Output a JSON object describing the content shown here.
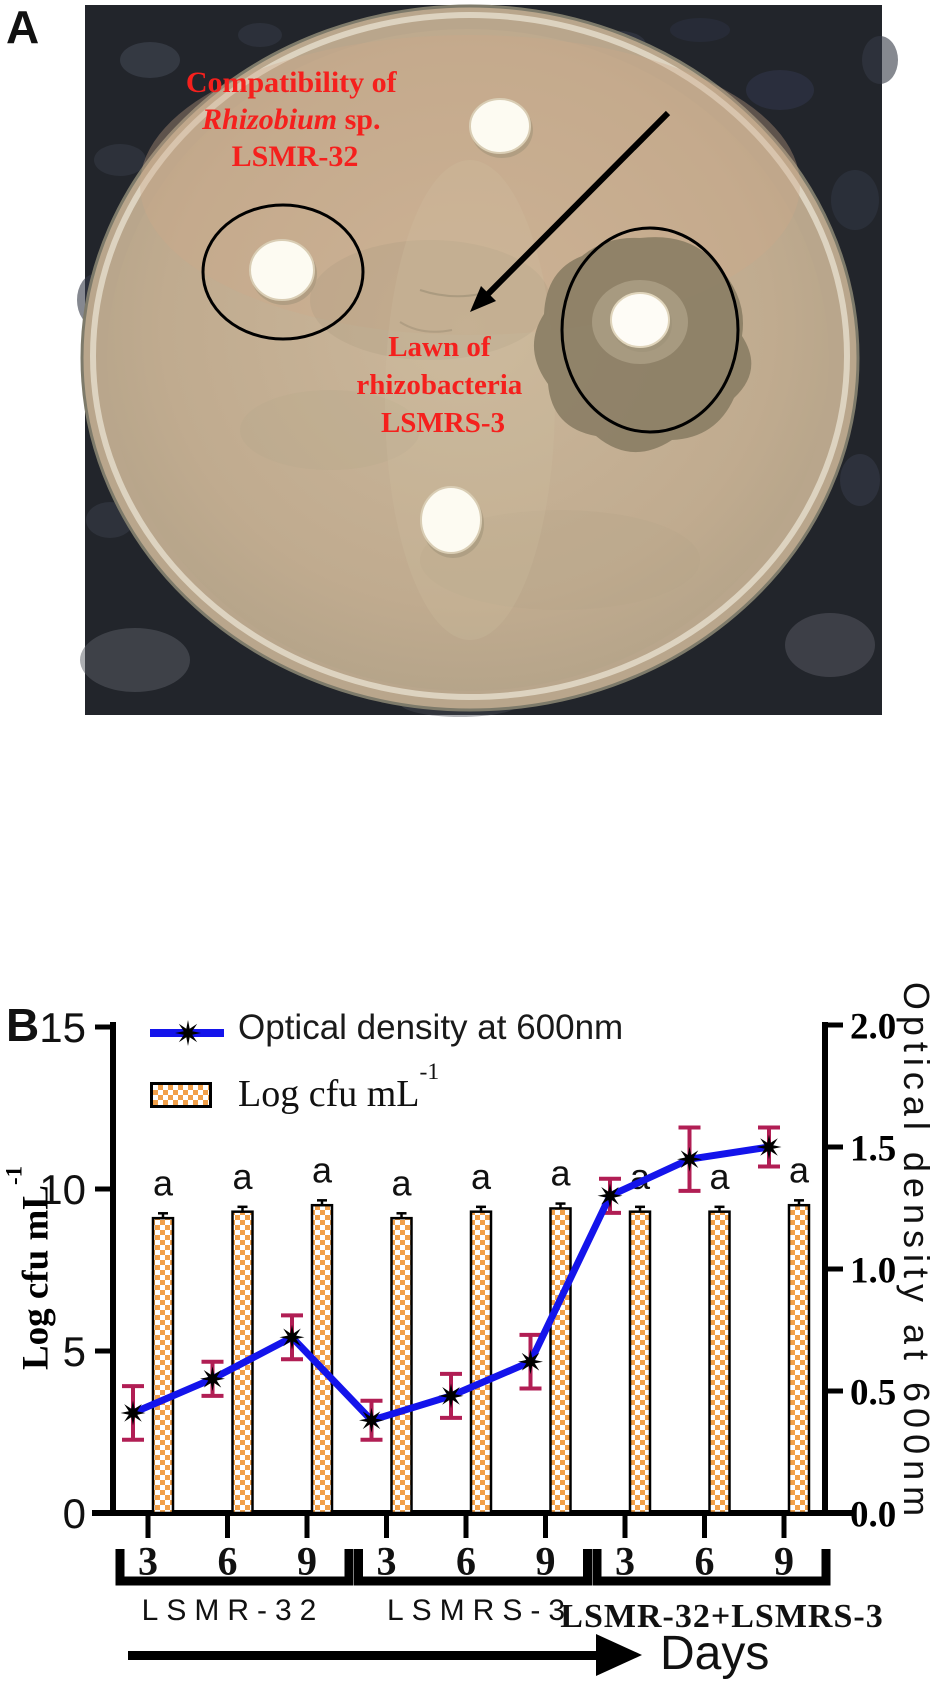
{
  "panel_a": {
    "label": "A",
    "annotation_compatibility": {
      "line1": "Compatibility of",
      "line2_italic": "Rhizobium",
      "line2_rest": " sp.",
      "line3": "LSMR-32",
      "color": "#F5201D"
    },
    "annotation_lawn": {
      "line1": "Lawn of",
      "line2": "rhizobacteria",
      "line3": "LSMRS-3",
      "color": "#F5201D"
    }
  },
  "panel_b": {
    "label": "B"
  },
  "chart_data": {
    "type": "combo",
    "x": {
      "slot_labels": [
        "3",
        "6",
        "9",
        "3",
        "6",
        "9",
        "3",
        "6",
        "9"
      ],
      "group_labels": [
        "LSMR-32",
        "LSMRS-3",
        "LSMR-32+LSMRS-3"
      ],
      "arrow_label": "Days"
    },
    "left_axis": {
      "title_main": "Log cfu mL",
      "title_sup": "-1",
      "range": [
        0,
        15
      ],
      "ticks": [
        {
          "label": "15",
          "value": 15
        },
        {
          "label": "10",
          "value": 10
        },
        {
          "label": "5",
          "value": 5
        },
        {
          "label": "0",
          "value": 0
        }
      ]
    },
    "right_axis": {
      "title": "Optical density at 600nm",
      "range": [
        0,
        2
      ],
      "ticks": [
        {
          "label": "2.0",
          "value": 2.0
        },
        {
          "label": "1.5",
          "value": 1.5
        },
        {
          "label": "1.0",
          "value": 1.0
        },
        {
          "label": "0.5",
          "value": 0.5
        },
        {
          "label": "0.0",
          "value": 0.0
        }
      ]
    },
    "series": [
      {
        "name": "Optical density at 600nm",
        "type": "line",
        "axis": "right",
        "line_color": "#1414EB",
        "marker": "black-8-point-star",
        "marker_color": "#000000",
        "error_color": "#B11E54",
        "values": [
          0.41,
          0.55,
          0.72,
          0.38,
          0.48,
          0.62,
          1.3,
          1.45,
          1.5
        ],
        "errors": [
          0.11,
          0.07,
          0.09,
          0.08,
          0.09,
          0.11,
          0.07,
          0.13,
          0.08
        ]
      },
      {
        "name_main": "Log cfu mL",
        "name_sup": "-1",
        "type": "bar",
        "axis": "left",
        "fill_color": "#F2A049",
        "pattern": "orange-white-checkerboard",
        "border_color": "#000000",
        "error_color": "#000000",
        "values": [
          9.1,
          9.3,
          9.5,
          9.1,
          9.3,
          9.4,
          9.3,
          9.3,
          9.5
        ],
        "errors": [
          0.15,
          0.15,
          0.15,
          0.15,
          0.15,
          0.15,
          0.15,
          0.15,
          0.15
        ],
        "sig_letters": [
          "a",
          "a",
          "a",
          "a",
          "a",
          "a",
          "a",
          "a",
          "a"
        ]
      }
    ]
  }
}
